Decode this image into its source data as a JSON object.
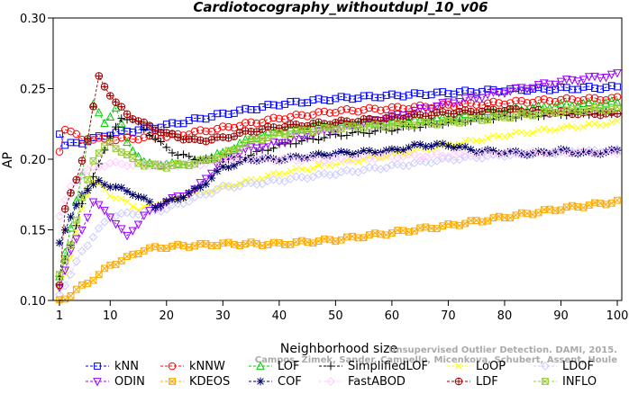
{
  "chart_data": {
    "type": "line",
    "title": "Cardiotocography_withoutdupl_10_v06",
    "xlabel": "Neighborhood size",
    "ylabel": "AP",
    "xlim": [
      1,
      100
    ],
    "ylim": [
      0.1,
      0.3
    ],
    "x_ticks": [
      1,
      10,
      20,
      30,
      40,
      50,
      60,
      70,
      80,
      90,
      100
    ],
    "y_ticks": [
      0.1,
      0.15,
      0.2,
      0.25,
      0.3
    ],
    "x_tick_labels": [
      "1",
      "10",
      "20",
      "30",
      "40",
      "50",
      "60",
      "70",
      "80",
      "90",
      "100"
    ],
    "y_tick_labels": [
      "0.10",
      "0.15",
      "0.20",
      "0.25",
      "0.30"
    ],
    "grid": false,
    "legend_position": "bottom",
    "series": [
      {
        "name": "kNN",
        "color": "#0000ff",
        "marker": "square",
        "anchors": [
          [
            1,
            0.219
          ],
          [
            2,
            0.21
          ],
          [
            5,
            0.212
          ],
          [
            10,
            0.218
          ],
          [
            20,
            0.224
          ],
          [
            30,
            0.232
          ],
          [
            40,
            0.239
          ],
          [
            50,
            0.243
          ],
          [
            60,
            0.245
          ],
          [
            70,
            0.247
          ],
          [
            80,
            0.249
          ],
          [
            90,
            0.25
          ],
          [
            100,
            0.251
          ]
        ]
      },
      {
        "name": "kNNW",
        "color": "#ff0000",
        "marker": "circle",
        "anchors": [
          [
            1,
            0.206
          ],
          [
            2,
            0.222
          ],
          [
            5,
            0.214
          ],
          [
            10,
            0.214
          ],
          [
            20,
            0.216
          ],
          [
            30,
            0.222
          ],
          [
            40,
            0.229
          ],
          [
            50,
            0.234
          ],
          [
            60,
            0.236
          ],
          [
            70,
            0.238
          ],
          [
            80,
            0.24
          ],
          [
            90,
            0.242
          ],
          [
            100,
            0.243
          ]
        ]
      },
      {
        "name": "LOF",
        "color": "#00cc00",
        "marker": "triangle-up",
        "anchors": [
          [
            1,
            0.118
          ],
          [
            3,
            0.15
          ],
          [
            5,
            0.19
          ],
          [
            7,
            0.238
          ],
          [
            9,
            0.226
          ],
          [
            11,
            0.236
          ],
          [
            13,
            0.212
          ],
          [
            16,
            0.197
          ],
          [
            20,
            0.196
          ],
          [
            25,
            0.198
          ],
          [
            30,
            0.204
          ],
          [
            35,
            0.215
          ],
          [
            40,
            0.22
          ],
          [
            50,
            0.225
          ],
          [
            60,
            0.226
          ],
          [
            70,
            0.229
          ],
          [
            80,
            0.234
          ],
          [
            90,
            0.238
          ],
          [
            100,
            0.24
          ]
        ]
      },
      {
        "name": "SimplifiedLOF",
        "color": "#000000",
        "marker": "plus",
        "anchors": [
          [
            1,
            0.116
          ],
          [
            3,
            0.14
          ],
          [
            5,
            0.168
          ],
          [
            8,
            0.198
          ],
          [
            10,
            0.215
          ],
          [
            12,
            0.23
          ],
          [
            15,
            0.226
          ],
          [
            18,
            0.214
          ],
          [
            22,
            0.203
          ],
          [
            26,
            0.2
          ],
          [
            30,
            0.199
          ],
          [
            35,
            0.203
          ],
          [
            40,
            0.21
          ],
          [
            50,
            0.217
          ],
          [
            60,
            0.221
          ],
          [
            70,
            0.226
          ],
          [
            80,
            0.23
          ],
          [
            90,
            0.232
          ],
          [
            100,
            0.233
          ]
        ]
      },
      {
        "name": "LoOP",
        "color": "#ffff00",
        "marker": "x",
        "anchors": [
          [
            1,
            0.11
          ],
          [
            3,
            0.13
          ],
          [
            5,
            0.165
          ],
          [
            7,
            0.185
          ],
          [
            10,
            0.175
          ],
          [
            15,
            0.165
          ],
          [
            20,
            0.17
          ],
          [
            25,
            0.175
          ],
          [
            30,
            0.18
          ],
          [
            35,
            0.185
          ],
          [
            40,
            0.19
          ],
          [
            50,
            0.197
          ],
          [
            60,
            0.203
          ],
          [
            70,
            0.21
          ],
          [
            80,
            0.217
          ],
          [
            90,
            0.222
          ],
          [
            100,
            0.226
          ]
        ]
      },
      {
        "name": "LDOF",
        "color": "#ccccff",
        "marker": "diamond",
        "anchors": [
          [
            1,
            0.105
          ],
          [
            3,
            0.118
          ],
          [
            5,
            0.135
          ],
          [
            10,
            0.16
          ],
          [
            15,
            0.162
          ],
          [
            20,
            0.165
          ],
          [
            30,
            0.18
          ],
          [
            40,
            0.185
          ],
          [
            50,
            0.19
          ],
          [
            60,
            0.195
          ],
          [
            70,
            0.2
          ],
          [
            80,
            0.203
          ],
          [
            90,
            0.205
          ],
          [
            100,
            0.206
          ]
        ]
      },
      {
        "name": "ODIN",
        "color": "#9900ff",
        "marker": "triangle-down",
        "anchors": [
          [
            1,
            0.11
          ],
          [
            3,
            0.135
          ],
          [
            5,
            0.15
          ],
          [
            7,
            0.17
          ],
          [
            10,
            0.16
          ],
          [
            13,
            0.145
          ],
          [
            16,
            0.16
          ],
          [
            20,
            0.17
          ],
          [
            25,
            0.178
          ],
          [
            30,
            0.2
          ],
          [
            35,
            0.208
          ],
          [
            40,
            0.212
          ],
          [
            50,
            0.222
          ],
          [
            60,
            0.23
          ],
          [
            70,
            0.24
          ],
          [
            80,
            0.248
          ],
          [
            90,
            0.255
          ],
          [
            100,
            0.26
          ]
        ]
      },
      {
        "name": "KDEOS",
        "color": "#ffaa00",
        "marker": "box-x",
        "anchors": [
          [
            1,
            0.1
          ],
          [
            3,
            0.104
          ],
          [
            5,
            0.11
          ],
          [
            8,
            0.118
          ],
          [
            10,
            0.125
          ],
          [
            13,
            0.13
          ],
          [
            16,
            0.136
          ],
          [
            20,
            0.138
          ],
          [
            30,
            0.14
          ],
          [
            40,
            0.14
          ],
          [
            50,
            0.143
          ],
          [
            60,
            0.148
          ],
          [
            70,
            0.153
          ],
          [
            80,
            0.159
          ],
          [
            90,
            0.165
          ],
          [
            100,
            0.17
          ]
        ]
      },
      {
        "name": "COF",
        "color": "#000066",
        "marker": "star",
        "anchors": [
          [
            1,
            0.142
          ],
          [
            3,
            0.158
          ],
          [
            5,
            0.176
          ],
          [
            8,
            0.184
          ],
          [
            11,
            0.18
          ],
          [
            14,
            0.176
          ],
          [
            18,
            0.167
          ],
          [
            22,
            0.172
          ],
          [
            26,
            0.18
          ],
          [
            30,
            0.194
          ],
          [
            35,
            0.2
          ],
          [
            40,
            0.2
          ],
          [
            50,
            0.204
          ],
          [
            60,
            0.206
          ],
          [
            65,
            0.21
          ],
          [
            70,
            0.21
          ],
          [
            75,
            0.206
          ],
          [
            80,
            0.205
          ],
          [
            85,
            0.204
          ],
          [
            90,
            0.206
          ],
          [
            95,
            0.204
          ],
          [
            100,
            0.206
          ]
        ]
      },
      {
        "name": "FastABOD",
        "color": "#ffccff",
        "marker": "diamond",
        "anchors": [
          [
            1,
            0.16
          ],
          [
            3,
            0.18
          ],
          [
            5,
            0.19
          ],
          [
            8,
            0.195
          ],
          [
            10,
            0.197
          ],
          [
            15,
            0.196
          ],
          [
            20,
            0.196
          ],
          [
            25,
            0.196
          ],
          [
            30,
            0.2
          ],
          [
            40,
            0.2
          ],
          [
            50,
            0.2
          ],
          [
            60,
            0.202
          ],
          [
            70,
            0.203
          ],
          [
            80,
            0.204
          ],
          [
            90,
            0.205
          ],
          [
            100,
            0.205
          ]
        ]
      },
      {
        "name": "LDF",
        "color": "#990000",
        "marker": "circle-plus",
        "anchors": [
          [
            1,
            0.112
          ],
          [
            2,
            0.165
          ],
          [
            4,
            0.185
          ],
          [
            6,
            0.215
          ],
          [
            8,
            0.258
          ],
          [
            9,
            0.252
          ],
          [
            11,
            0.24
          ],
          [
            13,
            0.232
          ],
          [
            16,
            0.225
          ],
          [
            20,
            0.218
          ],
          [
            25,
            0.213
          ],
          [
            30,
            0.215
          ],
          [
            35,
            0.22
          ],
          [
            40,
            0.223
          ],
          [
            50,
            0.226
          ],
          [
            60,
            0.229
          ],
          [
            70,
            0.233
          ],
          [
            80,
            0.235
          ],
          [
            90,
            0.233
          ],
          [
            100,
            0.232
          ]
        ]
      },
      {
        "name": "INFLO",
        "color": "#99cc33",
        "marker": "hourglass",
        "anchors": [
          [
            1,
            0.118
          ],
          [
            3,
            0.14
          ],
          [
            5,
            0.172
          ],
          [
            7,
            0.2
          ],
          [
            10,
            0.212
          ],
          [
            13,
            0.202
          ],
          [
            16,
            0.196
          ],
          [
            20,
            0.195
          ],
          [
            25,
            0.197
          ],
          [
            30,
            0.203
          ],
          [
            35,
            0.213
          ],
          [
            40,
            0.218
          ],
          [
            50,
            0.222
          ],
          [
            60,
            0.224
          ],
          [
            70,
            0.226
          ],
          [
            80,
            0.23
          ],
          [
            90,
            0.234
          ],
          [
            100,
            0.236
          ]
        ]
      }
    ]
  },
  "watermark": {
    "line1": "Unsupervised Outlier Detection. DAMI, 2015.",
    "line2": "Campos, Zimek, Sander, Campello, Micenkova, Schubert, Assent, Houle"
  }
}
